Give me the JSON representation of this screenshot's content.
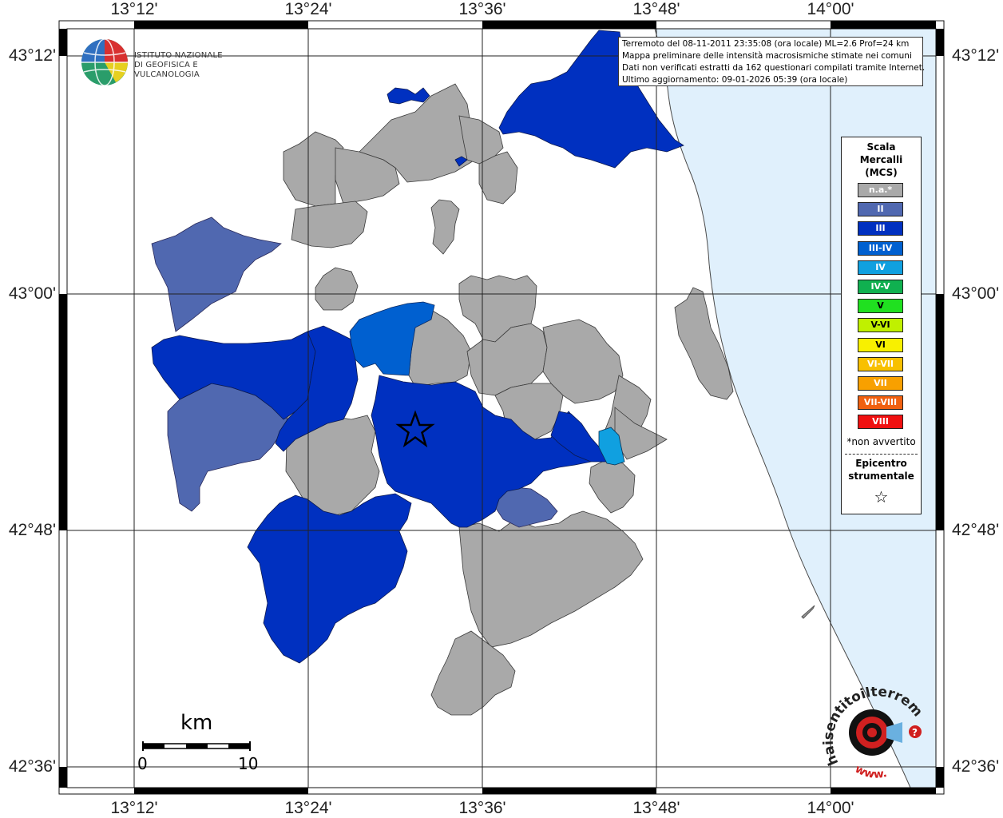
{
  "axes": {
    "lon_ticks": [
      "13°12'",
      "13°24'",
      "13°36'",
      "13°48'",
      "14°00'"
    ],
    "lat_ticks": [
      "43°12'",
      "43°00'",
      "42°48'",
      "42°36'"
    ]
  },
  "infobox": {
    "line1": "Terremoto del 08-11-2011 23:35:08 (ora locale) ML=2.6 Prof=24 km",
    "line2": "Mappa preliminare delle intensità macrosismiche stimate nei comuni",
    "line3": "Dati non verificati estratti da 162 questionari compilati tramite Internet.",
    "line4": "Ultimo aggiornamento: 09-01-2026 05:39 (ora locale)"
  },
  "logo_ingv": {
    "line1": "ISTITUTO NAZIONALE",
    "line2": "DI GEOFISICA E VULCANOLOGIA"
  },
  "legend": {
    "title1": "Scala",
    "title2": "Mercalli",
    "title3": "(MCS)",
    "items": [
      {
        "label": "n.a.*",
        "color": "#a9a9a9"
      },
      {
        "label": "II",
        "color": "#5068b0"
      },
      {
        "label": "III",
        "color": "#0030c0"
      },
      {
        "label": "III-IV",
        "color": "#0060d0"
      },
      {
        "label": "IV",
        "color": "#10a0e0"
      },
      {
        "label": "IV-V",
        "color": "#10b050"
      },
      {
        "label": "V",
        "color": "#20e020"
      },
      {
        "label": "V-VI",
        "color": "#c0f000"
      },
      {
        "label": "VI",
        "color": "#f8f000"
      },
      {
        "label": "VI-VII",
        "color": "#f8c000"
      },
      {
        "label": "VII",
        "color": "#f8a000"
      },
      {
        "label": "VII-VIII",
        "color": "#f06010"
      },
      {
        "label": "VIII",
        "color": "#f01010"
      }
    ],
    "note": "*non avvertito",
    "epicentre1": "Epicentro",
    "epicentre2": "strumentale",
    "star": "☆"
  },
  "scale_bar": {
    "unit": "km",
    "min": "0",
    "max": "10"
  },
  "logo_hst": {
    "text": "haisentitoilterremoto.it",
    "prefix": "www."
  },
  "colors": {
    "sea": "#e0f0fc",
    "na": "#a9a9a9",
    "II": "#5068b0",
    "III": "#0030c0",
    "III-IV": "#0060d0",
    "IV": "#10a0e0"
  }
}
